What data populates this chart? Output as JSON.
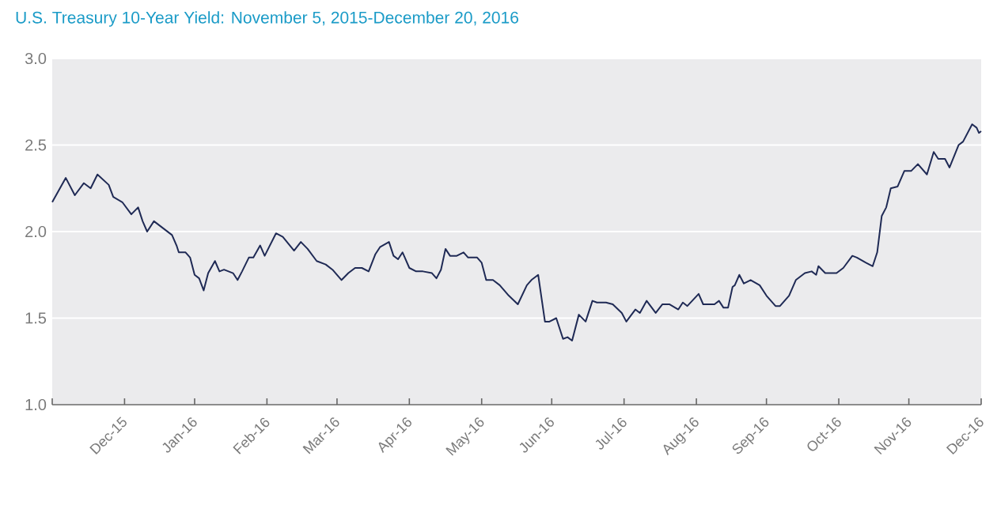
{
  "chart_data": {
    "type": "line",
    "title": "U.S. Treasury 10-Year Yield: November 5, 2015-December 20, 2016",
    "x": [
      "2015-11-05",
      "2015-11-11",
      "2015-11-15",
      "2015-11-19",
      "2015-11-22",
      "2015-11-25",
      "2015-11-30",
      "2015-12-02",
      "2015-12-06",
      "2015-12-10",
      "2015-12-13",
      "2015-12-15",
      "2015-12-17",
      "2015-12-20",
      "2015-12-24",
      "2015-12-28",
      "2015-12-30",
      "2015-12-31",
      "2016-01-03",
      "2016-01-05",
      "2016-01-07",
      "2016-01-09",
      "2016-01-11",
      "2016-01-13",
      "2016-01-16",
      "2016-01-18",
      "2016-01-20",
      "2016-01-24",
      "2016-01-26",
      "2016-01-28",
      "2016-01-31",
      "2016-02-02",
      "2016-02-05",
      "2016-02-07",
      "2016-02-12",
      "2016-02-15",
      "2016-02-20",
      "2016-02-23",
      "2016-02-26",
      "2016-03-01",
      "2016-03-05",
      "2016-03-08",
      "2016-03-12",
      "2016-03-15",
      "2016-03-18",
      "2016-03-21",
      "2016-03-24",
      "2016-03-27",
      "2016-03-29",
      "2016-04-02",
      "2016-04-04",
      "2016-04-06",
      "2016-04-08",
      "2016-04-11",
      "2016-04-14",
      "2016-04-17",
      "2016-04-21",
      "2016-04-23",
      "2016-04-25",
      "2016-04-27",
      "2016-04-29",
      "2016-05-02",
      "2016-05-05",
      "2016-05-07",
      "2016-05-11",
      "2016-05-13",
      "2016-05-15",
      "2016-05-18",
      "2016-05-21",
      "2016-05-25",
      "2016-05-29",
      "2016-06-02",
      "2016-06-04",
      "2016-06-07",
      "2016-06-10",
      "2016-06-12",
      "2016-06-15",
      "2016-06-18",
      "2016-06-20",
      "2016-06-22",
      "2016-06-25",
      "2016-06-28",
      "2016-07-01",
      "2016-07-03",
      "2016-07-07",
      "2016-07-10",
      "2016-07-14",
      "2016-07-16",
      "2016-07-20",
      "2016-07-22",
      "2016-07-25",
      "2016-07-29",
      "2016-08-01",
      "2016-08-04",
      "2016-08-08",
      "2016-08-10",
      "2016-08-12",
      "2016-08-17",
      "2016-08-19",
      "2016-08-24",
      "2016-08-26",
      "2016-08-28",
      "2016-08-30",
      "2016-09-01",
      "2016-09-02",
      "2016-09-04",
      "2016-09-06",
      "2016-09-09",
      "2016-09-13",
      "2016-09-16",
      "2016-09-20",
      "2016-09-22",
      "2016-09-26",
      "2016-09-29",
      "2016-10-03",
      "2016-10-06",
      "2016-10-08",
      "2016-10-09",
      "2016-10-12",
      "2016-10-17",
      "2016-10-20",
      "2016-10-24",
      "2016-10-26",
      "2016-10-30",
      "2016-11-02",
      "2016-11-04",
      "2016-11-06",
      "2016-11-08",
      "2016-11-10",
      "2016-11-13",
      "2016-11-16",
      "2016-11-19",
      "2016-11-22",
      "2016-11-26",
      "2016-11-29",
      "2016-12-01",
      "2016-12-04",
      "2016-12-06",
      "2016-12-10",
      "2016-12-12",
      "2016-12-16",
      "2016-12-18",
      "2016-12-19",
      "2016-12-20"
    ],
    "values": [
      2.17,
      2.31,
      2.21,
      2.28,
      2.25,
      2.33,
      2.27,
      2.2,
      2.17,
      2.1,
      2.14,
      2.06,
      2.0,
      2.06,
      2.02,
      1.98,
      1.92,
      1.88,
      1.88,
      1.85,
      1.75,
      1.73,
      1.66,
      1.76,
      1.83,
      1.77,
      1.78,
      1.76,
      1.72,
      1.77,
      1.85,
      1.85,
      1.92,
      1.86,
      1.99,
      1.97,
      1.89,
      1.94,
      1.9,
      1.83,
      1.81,
      1.78,
      1.72,
      1.76,
      1.79,
      1.79,
      1.77,
      1.87,
      1.91,
      1.94,
      1.86,
      1.84,
      1.88,
      1.79,
      1.77,
      1.77,
      1.76,
      1.73,
      1.78,
      1.9,
      1.86,
      1.86,
      1.88,
      1.85,
      1.85,
      1.82,
      1.72,
      1.72,
      1.69,
      1.63,
      1.58,
      1.69,
      1.72,
      1.75,
      1.48,
      1.48,
      1.5,
      1.38,
      1.39,
      1.37,
      1.52,
      1.48,
      1.6,
      1.59,
      1.59,
      1.58,
      1.53,
      1.48,
      1.55,
      1.53,
      1.6,
      1.53,
      1.58,
      1.58,
      1.55,
      1.59,
      1.57,
      1.64,
      1.58,
      1.58,
      1.6,
      1.56,
      1.56,
      1.68,
      1.69,
      1.75,
      1.7,
      1.72,
      1.69,
      1.63,
      1.57,
      1.57,
      1.63,
      1.72,
      1.76,
      1.77,
      1.75,
      1.8,
      1.76,
      1.76,
      1.79,
      1.86,
      1.85,
      1.82,
      1.8,
      1.88,
      2.09,
      2.14,
      2.25,
      2.26,
      2.35,
      2.35,
      2.39,
      2.33,
      2.46,
      2.42,
      2.42,
      2.37,
      2.5,
      2.52,
      2.62,
      2.6,
      2.57,
      2.58
    ],
    "color": "#1f2a55",
    "xlim": [
      "2015-11-05",
      "2016-12-20"
    ],
    "xticks": [
      {
        "value": "2015-11-05",
        "label": null
      },
      {
        "value": "2015-12-07",
        "label": "Dec-15"
      },
      {
        "value": "2016-01-07",
        "label": "Jan-16"
      },
      {
        "value": "2016-02-08",
        "label": "Feb-16"
      },
      {
        "value": "2016-03-10",
        "label": "Mar-16"
      },
      {
        "value": "2016-04-11",
        "label": "Apr-16"
      },
      {
        "value": "2016-05-13",
        "label": "May-16"
      },
      {
        "value": "2016-06-13",
        "label": "Jun-16"
      },
      {
        "value": "2016-07-15",
        "label": "Jul-16"
      },
      {
        "value": "2016-08-16",
        "label": "Aug-16"
      },
      {
        "value": "2016-09-16",
        "label": "Sep-16"
      },
      {
        "value": "2016-10-18",
        "label": "Oct-16"
      },
      {
        "value": "2016-11-18",
        "label": "Nov-16"
      },
      {
        "value": "2016-12-20",
        "label": "Dec-16"
      }
    ],
    "ylim": [
      1,
      3
    ],
    "yticks": [
      {
        "value": 1,
        "label": "1.0"
      },
      {
        "value": 1.5,
        "label": "1.5"
      },
      {
        "value": 2,
        "label": "2.0"
      },
      {
        "value": 2.5,
        "label": "2.5"
      },
      {
        "value": 3,
        "label": "3.0"
      }
    ],
    "grid": "y"
  }
}
